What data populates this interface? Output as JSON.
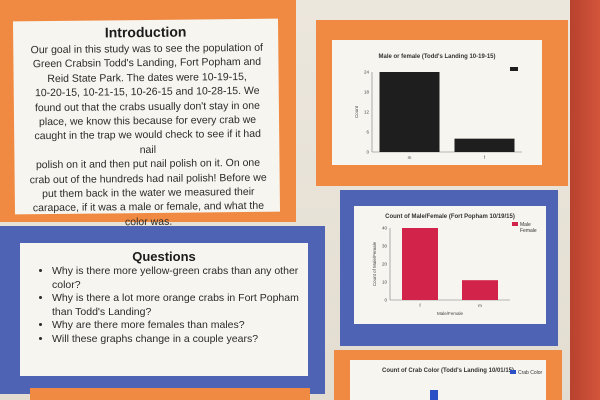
{
  "intro": {
    "title": "Introduction",
    "lines": [
      "Our goal in this study was to see the population of",
      "Green Crabsin Todd's Landing, Fort Popham and",
      "Reid State Park. The dates were 10-19-15,",
      "10-20-15, 10-21-15, 10-26-15 and 10-28-15. We",
      "found out that the crabs usually don't stay in one",
      "place, we know this because for every crab we",
      "caught in the trap we would check to see if it had nail",
      "polish on it and then put nail polish on it. On one",
      "crab out of the hundreds had nail polish! Before we",
      "put them back in the water we measured their",
      "carapace, if it was a male or female, and what the",
      "color was."
    ]
  },
  "questions": {
    "title": "Questions",
    "items": [
      "Why is there more yellow-green crabs than any other color?",
      "Why is there a lot more orange crabs in Fort Popham than Todd's Landing?",
      "Why are there more females than males?",
      "Will these graphs change in a couple years?"
    ]
  },
  "chart_data": [
    {
      "type": "bar",
      "title": "Male or female (Todd's Landing 10-19-15)",
      "categories": [
        "m",
        "f"
      ],
      "values": [
        24,
        4
      ],
      "ylabel": "Count",
      "ylim": [
        0,
        24
      ],
      "yticks": [
        "0",
        "6",
        "12",
        "18",
        "24"
      ],
      "color": "#1e1e1e"
    },
    {
      "type": "bar",
      "title": "Count of Male/Female (Fort Popham 10/19/15)",
      "categories": [
        "f",
        "m"
      ],
      "values": [
        40,
        11
      ],
      "ylabel": "Count of Male/Female",
      "xlabel": "Male/Female",
      "ylim": [
        0,
        40
      ],
      "yticks": [
        "0",
        "10",
        "20",
        "30",
        "40"
      ],
      "legend": [
        "Male",
        "Female"
      ],
      "legend_position": "top-right",
      "color": "#d2234a"
    },
    {
      "type": "bar",
      "title": "Count of Crab Color (Todd's Landing 10/01/15)",
      "legend": [
        "Crab Color"
      ],
      "legend_position": "top-right",
      "color": "#2b4fc4"
    }
  ]
}
